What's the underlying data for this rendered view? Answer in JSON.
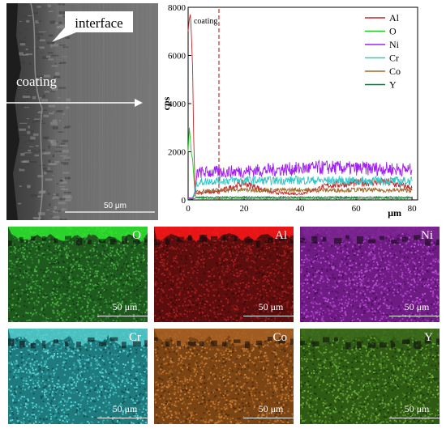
{
  "sem_panel": {
    "interface_label": "interface",
    "coating_label": "coating",
    "scale_bar_label": "50 μm"
  },
  "chart_data": {
    "type": "line",
    "title": "",
    "xlabel": "μm",
    "ylabel": "cps",
    "xlim": [
      0,
      82
    ],
    "ylim": [
      0,
      8000
    ],
    "xticks": [
      0,
      20,
      40,
      60,
      80
    ],
    "yticks": [
      0,
      2000,
      4000,
      6000,
      8000
    ],
    "legend_position": "top-right",
    "grid": false,
    "annotation": {
      "text": "coating",
      "x": 11
    },
    "series": [
      {
        "name": "Al",
        "color": "#c0282b",
        "x": [
          0,
          0.4,
          0.8,
          1.2,
          1.6,
          2.0,
          2.4,
          2.8,
          3.2,
          3.6,
          5,
          10,
          20,
          30,
          40,
          50,
          60,
          70,
          80
        ],
        "y": [
          7000,
          7500,
          7700,
          6800,
          5500,
          2500,
          800,
          300,
          250,
          300,
          300,
          320,
          700,
          300,
          250,
          600,
          700,
          750,
          500
        ]
      },
      {
        "name": "O",
        "color": "#22c422",
        "x": [
          0,
          0.4,
          0.8,
          1.2,
          1.6,
          2.0,
          2.4,
          2.8,
          3.2,
          5,
          10,
          20,
          40,
          60,
          80
        ],
        "y": [
          2000,
          3000,
          2500,
          1900,
          1700,
          1000,
          300,
          100,
          80,
          60,
          60,
          60,
          60,
          60,
          60
        ]
      },
      {
        "name": "Ni",
        "color": "#a020f0",
        "x": [
          0,
          0.8,
          1.6,
          2.4,
          3.2,
          5,
          10,
          20,
          30,
          40,
          50,
          60,
          70,
          80
        ],
        "y": [
          100,
          80,
          100,
          300,
          1100,
          1150,
          1150,
          1200,
          1250,
          1300,
          1350,
          1300,
          1300,
          1250
        ]
      },
      {
        "name": "Cr",
        "color": "#30c8c8",
        "x": [
          0,
          1.6,
          3.2,
          5,
          10,
          20,
          30,
          40,
          50,
          60,
          70,
          80
        ],
        "y": [
          50,
          60,
          700,
          750,
          800,
          820,
          800,
          820,
          800,
          800,
          800,
          780
        ]
      },
      {
        "name": "Co",
        "color": "#a06a2a",
        "x": [
          0,
          1.6,
          3.2,
          5,
          10,
          20,
          30,
          40,
          50,
          60,
          70,
          80
        ],
        "y": [
          40,
          50,
          350,
          380,
          400,
          420,
          400,
          420,
          400,
          420,
          400,
          400
        ]
      },
      {
        "name": "Y",
        "color": "#1e6e4a",
        "x": [
          0,
          1.6,
          3.2,
          5,
          10,
          20,
          40,
          60,
          80
        ],
        "y": [
          20,
          30,
          100,
          110,
          110,
          110,
          110,
          110,
          110
        ]
      }
    ]
  },
  "maps": [
    {
      "label": "O",
      "scale_label": "50 μm",
      "base": "#1e5a1e",
      "dots": [
        "#2c7a2c",
        "#3d953a",
        "#143f14",
        "#4aad44"
      ],
      "coating_color": "#2fe82f"
    },
    {
      "label": "Al",
      "scale_label": "50 μm",
      "base": "#5c0d0d",
      "dots": [
        "#7a1414",
        "#951c1c",
        "#3f0808",
        "#a82020"
      ],
      "coating_color": "#ff1818"
    },
    {
      "label": "Ni",
      "scale_label": "50 μm",
      "base": "#6e1b83",
      "dots": [
        "#8f2ca8",
        "#a53ec0",
        "#4d1060",
        "#b850d2"
      ],
      "coating_color": "#7a2490"
    },
    {
      "label": "Cr",
      "scale_label": "50 μm",
      "base": "#1e7a7d",
      "dots": [
        "#2ea0a3",
        "#48bcbe",
        "#135456",
        "#5fd2d4"
      ],
      "coating_color": "#55cccc"
    },
    {
      "label": "Co",
      "scale_label": "50 μm",
      "base": "#7a4414",
      "dots": [
        "#9a5a20",
        "#b86e2a",
        "#552e0c",
        "#c87d35"
      ],
      "coating_color": "#a86024"
    },
    {
      "label": "Y",
      "scale_label": "50 μm",
      "base": "#2e5a14",
      "dots": [
        "#457d22",
        "#5a962e",
        "#1b3b0a",
        "#6aa83a"
      ],
      "coating_color": "#3c6a1c"
    }
  ]
}
